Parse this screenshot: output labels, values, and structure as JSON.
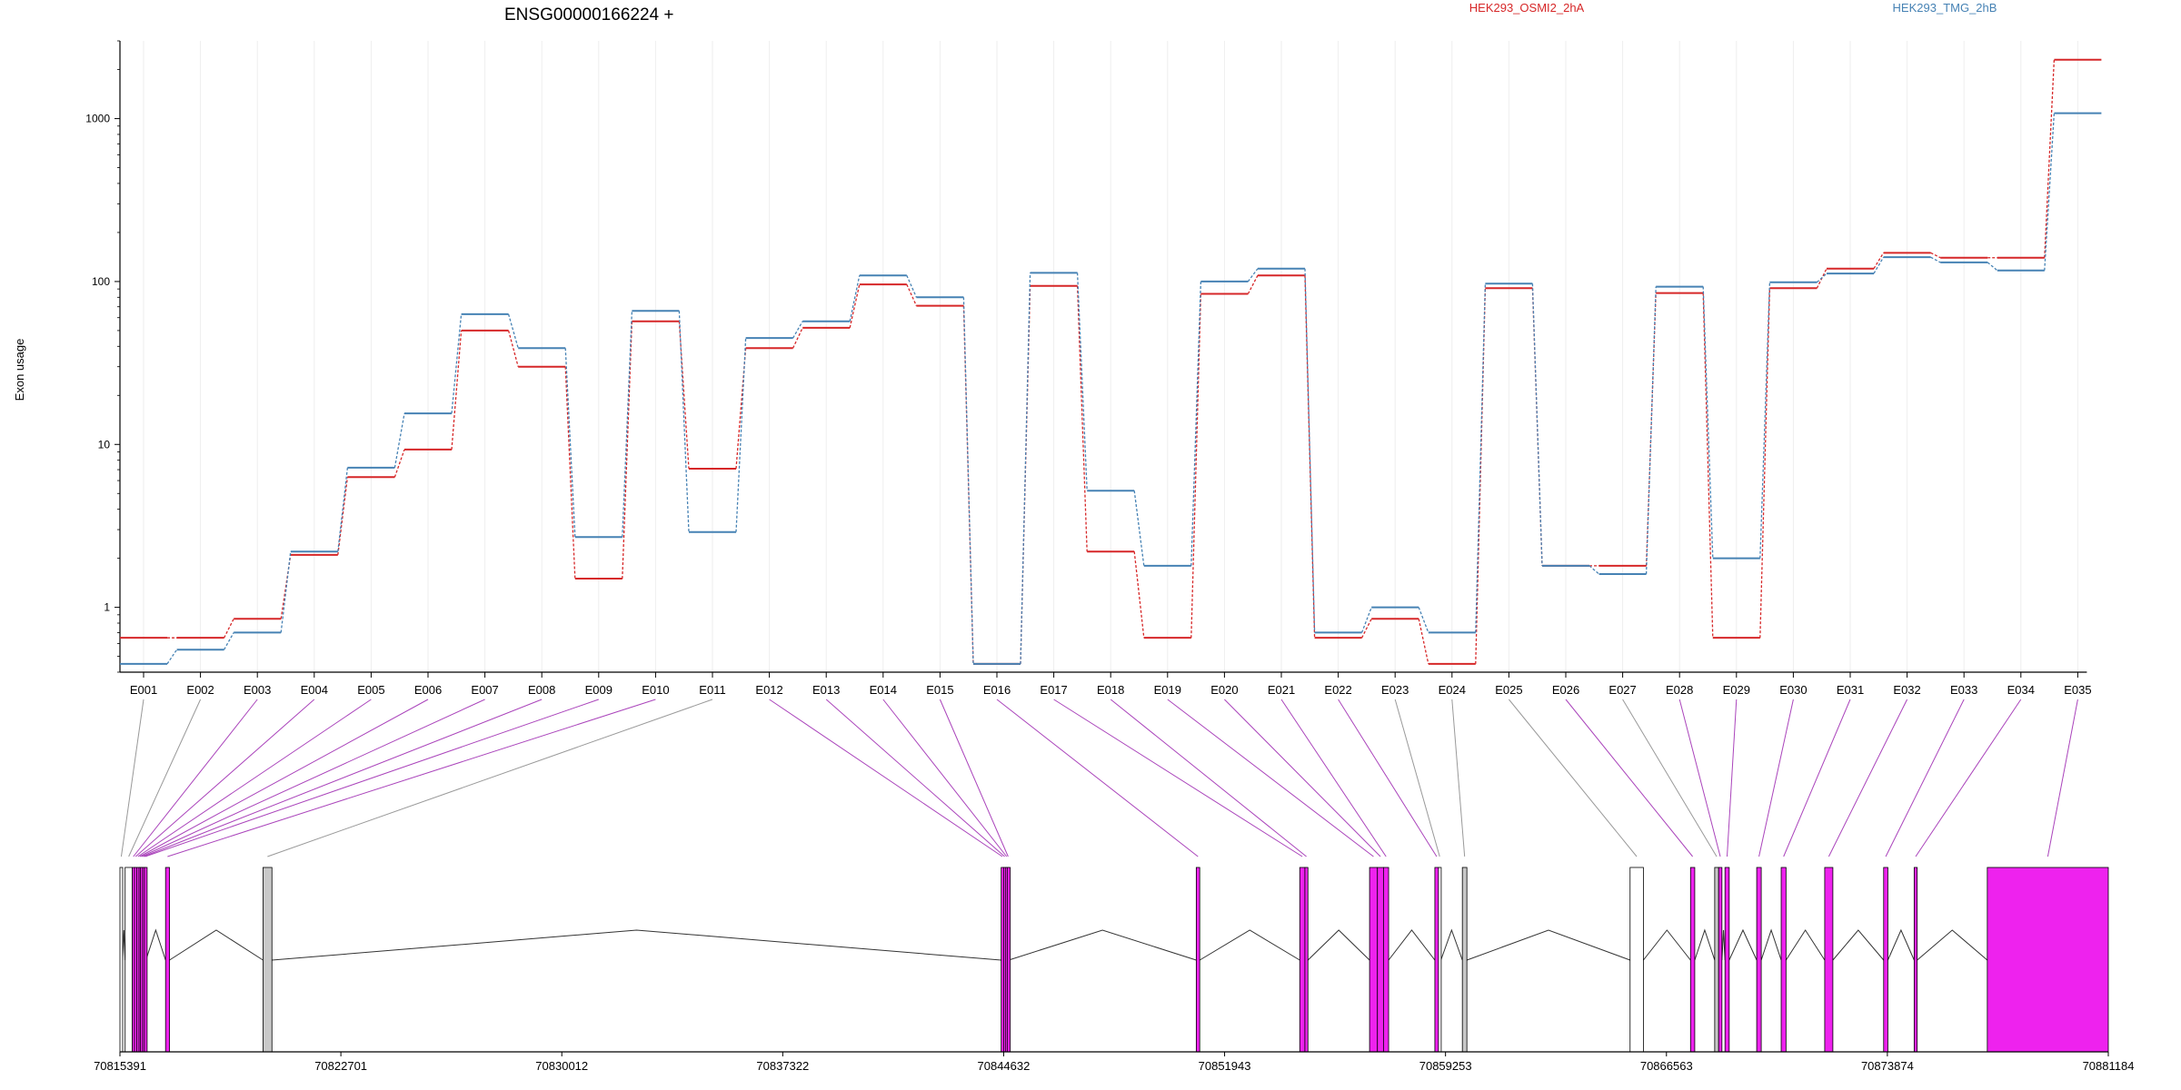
{
  "chart_data": {
    "type": "line",
    "title": "ENSG00000166224 +",
    "ylabel": "Exon usage",
    "yscale": "log",
    "ylim": [
      0.4,
      3000
    ],
    "yticks": [
      "1",
      "10",
      "100",
      "1000"
    ],
    "ytick_values": [
      1,
      10,
      100,
      1000
    ],
    "categories": [
      "E001",
      "E002",
      "E003",
      "E004",
      "E005",
      "E006",
      "E007",
      "E008",
      "E009",
      "E010",
      "E011",
      "E012",
      "E013",
      "E014",
      "E015",
      "E016",
      "E017",
      "E018",
      "E019",
      "E020",
      "E021",
      "E022",
      "E023",
      "E024",
      "E025",
      "E026",
      "E027",
      "E028",
      "E029",
      "E030",
      "E031",
      "E032",
      "E033",
      "E034",
      "E035"
    ],
    "series": [
      {
        "name": "HEK293_OSMI2_2hA",
        "color": "#d62728",
        "values": [
          0.65,
          0.65,
          0.85,
          2.1,
          6.3,
          9.3,
          50,
          30,
          1.5,
          57,
          7.1,
          39,
          52,
          96,
          71,
          0.45,
          94,
          2.2,
          0.65,
          84,
          109,
          0.65,
          0.85,
          0.45,
          91,
          1.8,
          1.8,
          85,
          0.65,
          91,
          120,
          150,
          140,
          140,
          2300
        ]
      },
      {
        "name": "HEK293_TMG_2hB",
        "color": "#4682b4",
        "values": [
          0.45,
          0.55,
          0.7,
          2.2,
          7.2,
          15.5,
          63,
          39,
          2.7,
          66,
          2.9,
          45,
          57,
          109,
          80,
          0.45,
          113,
          5.2,
          1.8,
          100,
          120,
          0.7,
          1.0,
          0.7,
          97,
          1.8,
          1.6,
          93,
          2.0,
          99,
          112,
          141,
          131,
          117,
          1080
        ]
      }
    ],
    "genomic_axis": {
      "tick_labels": [
        "70815391",
        "70822701",
        "70830012",
        "70837322",
        "70844632",
        "70851943",
        "70859253",
        "70866563",
        "70873874",
        "70881184"
      ],
      "range": [
        70815391,
        70881184
      ]
    },
    "gene_model": {
      "exon_fill_colors": {
        "differential": "#ee22ee",
        "constant": "#c8c8c8",
        "noncoding": "#ffffff"
      },
      "exons": [
        {
          "id": "E001",
          "start": 70815391,
          "end": 70815478,
          "fill": "noncoding"
        },
        {
          "id": "E002",
          "start": 70815562,
          "end": 70815800,
          "fill": "noncoding"
        },
        {
          "id": "E003",
          "start": 70815800,
          "end": 70815870,
          "fill": "differential"
        },
        {
          "id": "E004",
          "start": 70815870,
          "end": 70815950,
          "fill": "differential"
        },
        {
          "id": "E005",
          "start": 70815950,
          "end": 70816020,
          "fill": "differential"
        },
        {
          "id": "E006",
          "start": 70816020,
          "end": 70816070,
          "fill": "differential"
        },
        {
          "id": "E007",
          "start": 70816070,
          "end": 70816140,
          "fill": "differential"
        },
        {
          "id": "E008",
          "start": 70816140,
          "end": 70816200,
          "fill": "differential"
        },
        {
          "id": "E009",
          "start": 70816200,
          "end": 70816250,
          "fill": "differential"
        },
        {
          "id": "E010",
          "start": 70816900,
          "end": 70817030,
          "fill": "differential"
        },
        {
          "id": "E011",
          "start": 70820125,
          "end": 70820420,
          "fill": "constant"
        },
        {
          "id": "E012",
          "start": 70844550,
          "end": 70844630,
          "fill": "differential"
        },
        {
          "id": "E013",
          "start": 70844630,
          "end": 70844700,
          "fill": "differential"
        },
        {
          "id": "E014",
          "start": 70844700,
          "end": 70844760,
          "fill": "differential"
        },
        {
          "id": "E015",
          "start": 70844760,
          "end": 70844800,
          "fill": "differential"
        },
        {
          "id": "E016",
          "start": 70851005,
          "end": 70851120,
          "fill": "differential"
        },
        {
          "id": "E017",
          "start": 70854430,
          "end": 70854600,
          "fill": "differential"
        },
        {
          "id": "E018",
          "start": 70854600,
          "end": 70854700,
          "fill": "differential"
        },
        {
          "id": "E019",
          "start": 70856740,
          "end": 70857000,
          "fill": "differential"
        },
        {
          "id": "E020",
          "start": 70857000,
          "end": 70857200,
          "fill": "differential"
        },
        {
          "id": "E021",
          "start": 70857200,
          "end": 70857370,
          "fill": "differential"
        },
        {
          "id": "E022",
          "start": 70858900,
          "end": 70859020,
          "fill": "differential"
        },
        {
          "id": "E023",
          "start": 70859020,
          "end": 70859100,
          "fill": "noncoding"
        },
        {
          "id": "E024",
          "start": 70859810,
          "end": 70859960,
          "fill": "constant"
        },
        {
          "id": "E025",
          "start": 70865360,
          "end": 70865800,
          "fill": "noncoding"
        },
        {
          "id": "E026",
          "start": 70867360,
          "end": 70867500,
          "fill": "differential"
        },
        {
          "id": "E027",
          "start": 70868160,
          "end": 70868290,
          "fill": "constant"
        },
        {
          "id": "E028",
          "start": 70868290,
          "end": 70868400,
          "fill": "differential"
        },
        {
          "id": "E029",
          "start": 70868500,
          "end": 70868640,
          "fill": "differential"
        },
        {
          "id": "E030",
          "start": 70869550,
          "end": 70869700,
          "fill": "differential"
        },
        {
          "id": "E031",
          "start": 70870360,
          "end": 70870520,
          "fill": "differential"
        },
        {
          "id": "E032",
          "start": 70871800,
          "end": 70872070,
          "fill": "differential"
        },
        {
          "id": "E033",
          "start": 70873750,
          "end": 70873890,
          "fill": "differential"
        },
        {
          "id": "E034",
          "start": 70874760,
          "end": 70874860,
          "fill": "differential"
        },
        {
          "id": "E035",
          "start": 70877180,
          "end": 70881184,
          "fill": "differential"
        }
      ]
    }
  }
}
